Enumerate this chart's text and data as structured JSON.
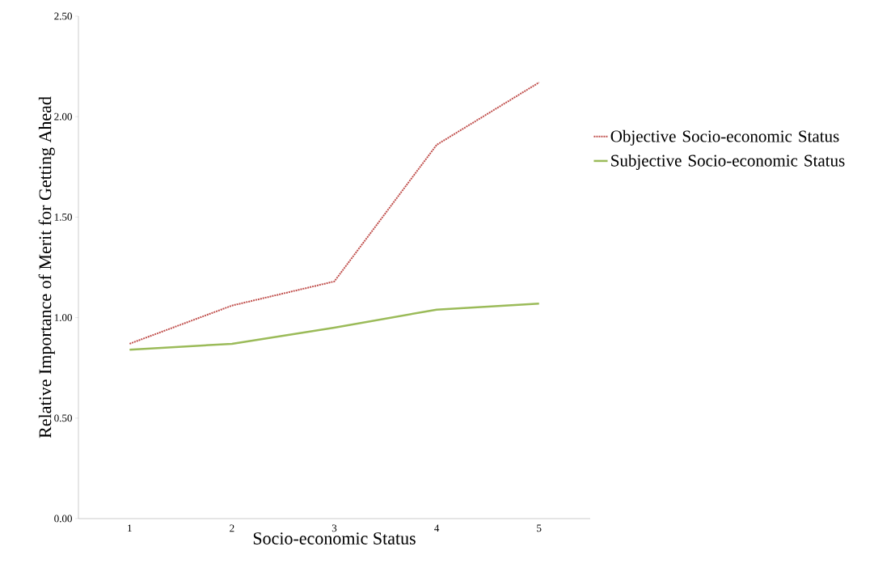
{
  "chart_data": {
    "type": "line",
    "xlabel": "Socio-economic Status",
    "ylabel": "Relative Importance of Merit for Getting Ahead",
    "categories": [
      "1",
      "2",
      "3",
      "4",
      "5"
    ],
    "series": [
      {
        "name": "Objective Socio-economic Status",
        "color": "#c0504d",
        "line_style": "dotted",
        "values": [
          0.87,
          1.06,
          1.18,
          1.86,
          2.17
        ]
      },
      {
        "name": "Subjective Socio-economic Status",
        "color": "#9bbb59",
        "line_style": "solid",
        "values": [
          0.84,
          0.87,
          0.95,
          1.04,
          1.07
        ]
      }
    ],
    "ylim": [
      0,
      2.5
    ],
    "yticks": [
      {
        "value": 0,
        "label": "0.00"
      },
      {
        "value": 0.5,
        "label": "0.50"
      },
      {
        "value": 1,
        "label": "1.00"
      },
      {
        "value": 1.5,
        "label": "1.50"
      },
      {
        "value": 2,
        "label": "2.00"
      },
      {
        "value": 2.5,
        "label": "2.50"
      }
    ],
    "legend": "right",
    "marker": "none",
    "grid": false
  }
}
